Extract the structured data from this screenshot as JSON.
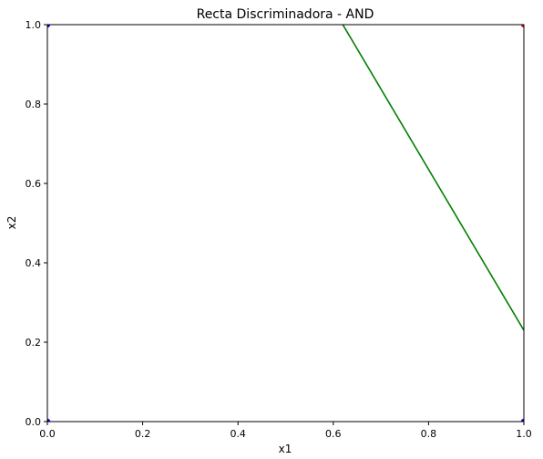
{
  "chart_data": {
    "type": "scatter",
    "title": "Recta Discriminadora - AND",
    "xlabel": "x1",
    "ylabel": "x2",
    "xlim": [
      0.0,
      1.0
    ],
    "ylim": [
      0.0,
      1.0
    ],
    "xticks": [
      "0.0",
      "0.2",
      "0.4",
      "0.6",
      "0.8",
      "1.0"
    ],
    "yticks": [
      "0.0",
      "0.2",
      "0.4",
      "0.6",
      "0.8",
      "1.0"
    ],
    "grid": false,
    "points": [
      {
        "x": 0,
        "y": 0,
        "color": "#0000ff"
      },
      {
        "x": 0,
        "y": 1,
        "color": "#0000ff"
      },
      {
        "x": 1,
        "y": 0,
        "color": "#0000ff"
      },
      {
        "x": 1,
        "y": 1,
        "color": "#ff0000"
      }
    ],
    "lines": [
      {
        "x": [
          0.62,
          1.0
        ],
        "y": [
          1.0,
          0.23
        ],
        "color": "#008000"
      }
    ]
  }
}
